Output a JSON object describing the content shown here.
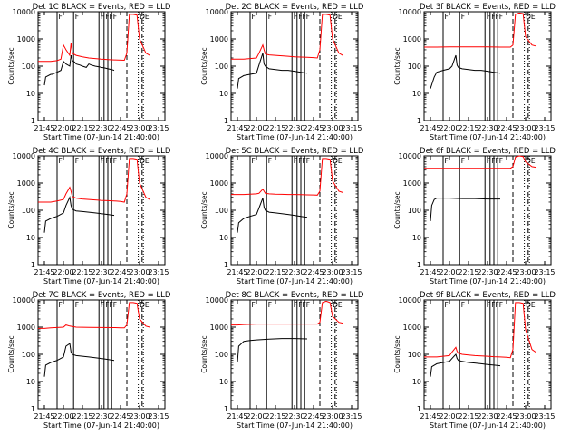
{
  "figure": {
    "colors": {
      "events": "#000000",
      "lld": "#ff0000",
      "axis": "#000000",
      "background": "#ffffff"
    },
    "ylabel": "Counts/sec",
    "xlabel": "Start Time (07-Jun-14 21:40:00)",
    "x_tick_labels": [
      "21:45",
      "22:00",
      "22:15",
      "22:30",
      "22:45",
      "23:00",
      "23:15"
    ],
    "y_tick_labels": [
      "1",
      "10",
      "100",
      "1000",
      "10000"
    ],
    "event_flags": [
      "F",
      "F",
      "F",
      "F",
      "F",
      "F",
      "DE"
    ]
  },
  "chart_data": [
    {
      "type": "line",
      "title": "Det 1C BLACK = Events, RED = LLD",
      "xlim_min": [
        0,
        100
      ],
      "ylim": [
        1,
        10000
      ],
      "yscale": "log",
      "x_ticks_min": [
        5,
        20,
        35,
        50,
        65,
        80,
        95
      ],
      "series": [
        {
          "name": "Events",
          "color": "#000000",
          "x": [
            0,
            5,
            6,
            10,
            11,
            15,
            18,
            20,
            22,
            25,
            26,
            27,
            29,
            30,
            33,
            35,
            38,
            40,
            42,
            45,
            48,
            50,
            53,
            55,
            58,
            60
          ],
          "y": [
            null,
            20,
            40,
            50,
            50,
            60,
            70,
            150,
            120,
            100,
            250,
            160,
            140,
            120,
            110,
            100,
            90,
            120,
            110,
            100,
            95,
            90,
            85,
            80,
            75,
            70
          ]
        },
        {
          "name": "LLD",
          "color": "#ff0000",
          "x": [
            0,
            5,
            10,
            15,
            18,
            20,
            22,
            25,
            26,
            27,
            30,
            35,
            40,
            45,
            50,
            55,
            60,
            68,
            70,
            72,
            75,
            78,
            80,
            85,
            88
          ],
          "y": [
            150,
            150,
            150,
            160,
            180,
            600,
            400,
            250,
            700,
            300,
            250,
            220,
            200,
            190,
            180,
            175,
            170,
            165,
            300,
            8000,
            8000,
            7500,
            1000,
            300,
            250
          ]
        }
      ],
      "vlines_solid_min": [
        15,
        28,
        48,
        52,
        55,
        58
      ],
      "vlines_dashed_min": [
        70,
        82
      ],
      "vlines_dotted_min": [
        79,
        83
      ]
    },
    {
      "type": "line",
      "title": "Det 2C BLACK = Events, RED = LLD",
      "xlim_min": [
        0,
        100
      ],
      "ylim": [
        1,
        10000
      ],
      "yscale": "log",
      "x_ticks_min": [
        5,
        20,
        35,
        50,
        65,
        80,
        95
      ],
      "series": [
        {
          "name": "Events",
          "color": "#000000",
          "x": [
            0,
            5,
            6,
            10,
            15,
            20,
            22,
            25,
            26,
            27,
            30,
            35,
            40,
            45,
            50,
            55,
            60
          ],
          "y": [
            null,
            15,
            35,
            45,
            50,
            55,
            110,
            300,
            120,
            100,
            80,
            75,
            70,
            70,
            65,
            60,
            55
          ]
        },
        {
          "name": "LLD",
          "color": "#ff0000",
          "x": [
            0,
            5,
            10,
            15,
            20,
            22,
            25,
            26,
            27,
            30,
            35,
            40,
            45,
            50,
            55,
            60,
            65,
            68,
            70,
            72,
            75,
            78,
            80,
            85,
            88
          ],
          "y": [
            180,
            180,
            180,
            190,
            200,
            300,
            600,
            400,
            280,
            260,
            250,
            240,
            230,
            220,
            215,
            210,
            205,
            200,
            400,
            8000,
            8000,
            7500,
            1000,
            300,
            250
          ]
        }
      ],
      "vlines_solid_min": [
        15,
        28,
        48,
        52,
        55,
        58
      ],
      "vlines_dashed_min": [
        70,
        82
      ],
      "vlines_dotted_min": [
        79,
        83
      ]
    },
    {
      "type": "line",
      "title": "Det 3f BLACK = Events, RED = LLD",
      "xlim_min": [
        0,
        100
      ],
      "ylim": [
        1,
        10000
      ],
      "yscale": "log",
      "x_ticks_min": [
        5,
        20,
        35,
        50,
        65,
        80,
        95
      ],
      "series": [
        {
          "name": "Events",
          "color": "#000000",
          "x": [
            0,
            5,
            8,
            10,
            15,
            20,
            22,
            25,
            26,
            27,
            30,
            35,
            40,
            45,
            50,
            55,
            60
          ],
          "y": [
            null,
            15,
            40,
            60,
            70,
            80,
            100,
            250,
            110,
            90,
            80,
            75,
            70,
            70,
            65,
            60,
            55
          ]
        },
        {
          "name": "LLD",
          "color": "#ff0000",
          "x": [
            0,
            5,
            10,
            20,
            30,
            40,
            50,
            60,
            65,
            68,
            70,
            72,
            75,
            78,
            80,
            85,
            88
          ],
          "y": [
            500,
            500,
            500,
            510,
            510,
            510,
            510,
            500,
            500,
            500,
            600,
            8000,
            9000,
            8500,
            1200,
            600,
            550
          ]
        }
      ],
      "vlines_solid_min": [
        15,
        28,
        48,
        52,
        55,
        58
      ],
      "vlines_dashed_min": [
        70,
        82
      ],
      "vlines_dotted_min": [
        79,
        83
      ]
    },
    {
      "type": "line",
      "title": "Det 4C BLACK = Events, RED = LLD",
      "xlim_min": [
        0,
        100
      ],
      "ylim": [
        1,
        10000
      ],
      "yscale": "log",
      "x_ticks_min": [
        5,
        20,
        35,
        50,
        65,
        80,
        95
      ],
      "series": [
        {
          "name": "Events",
          "color": "#000000",
          "x": [
            0,
            5,
            6,
            10,
            15,
            20,
            22,
            25,
            26,
            27,
            30,
            35,
            40,
            45,
            50,
            55,
            60
          ],
          "y": [
            null,
            15,
            40,
            50,
            60,
            80,
            150,
            300,
            150,
            110,
            95,
            90,
            85,
            80,
            75,
            70,
            65
          ]
        },
        {
          "name": "LLD",
          "color": "#ff0000",
          "x": [
            0,
            5,
            10,
            15,
            20,
            22,
            25,
            26,
            27,
            30,
            35,
            40,
            45,
            50,
            55,
            60,
            65,
            68,
            70,
            72,
            75,
            78,
            80,
            85,
            88
          ],
          "y": [
            200,
            200,
            200,
            220,
            250,
            400,
            700,
            500,
            320,
            280,
            260,
            250,
            240,
            230,
            225,
            220,
            210,
            200,
            400,
            8000,
            8000,
            7500,
            1000,
            300,
            250
          ]
        }
      ],
      "vlines_solid_min": [
        15,
        28,
        48,
        52,
        55,
        58
      ],
      "vlines_dashed_min": [
        70,
        82
      ],
      "vlines_dotted_min": [
        79,
        83
      ]
    },
    {
      "type": "line",
      "title": "Det 5C BLACK = Events, RED = LLD",
      "xlim_min": [
        0,
        100
      ],
      "ylim": [
        1,
        10000
      ],
      "yscale": "log",
      "x_ticks_min": [
        5,
        20,
        35,
        50,
        65,
        80,
        95
      ],
      "series": [
        {
          "name": "Events",
          "color": "#000000",
          "x": [
            0,
            5,
            6,
            10,
            15,
            20,
            22,
            25,
            26,
            27,
            30,
            35,
            40,
            45,
            50,
            55,
            60
          ],
          "y": [
            null,
            15,
            35,
            50,
            60,
            70,
            120,
            280,
            130,
            100,
            85,
            80,
            75,
            70,
            65,
            60,
            55
          ]
        },
        {
          "name": "LLD",
          "color": "#ff0000",
          "x": [
            0,
            5,
            10,
            15,
            20,
            22,
            25,
            26,
            27,
            30,
            35,
            40,
            45,
            50,
            55,
            60,
            65,
            68,
            70,
            72,
            75,
            78,
            80,
            85,
            88
          ],
          "y": [
            380,
            380,
            380,
            390,
            400,
            420,
            600,
            500,
            420,
            400,
            390,
            385,
            380,
            380,
            375,
            370,
            365,
            360,
            500,
            8000,
            8000,
            7500,
            1200,
            500,
            450
          ]
        }
      ],
      "vlines_solid_min": [
        15,
        28,
        48,
        52,
        55,
        58
      ],
      "vlines_dashed_min": [
        70,
        82
      ],
      "vlines_dotted_min": [
        79,
        83
      ]
    },
    {
      "type": "line",
      "title": "Det 6f BLACK = Events, RED = LLD",
      "xlim_min": [
        0,
        100
      ],
      "ylim": [
        1,
        10000
      ],
      "yscale": "log",
      "x_ticks_min": [
        5,
        20,
        35,
        50,
        65,
        80,
        95
      ],
      "series": [
        {
          "name": "Events",
          "color": "#000000",
          "x": [
            0,
            5,
            6,
            8,
            10,
            20,
            30,
            40,
            50,
            60
          ],
          "y": [
            null,
            40,
            150,
            250,
            280,
            280,
            270,
            270,
            260,
            260
          ]
        },
        {
          "name": "LLD",
          "color": "#ff0000",
          "x": [
            0,
            5,
            10,
            20,
            30,
            40,
            50,
            60,
            65,
            68,
            70,
            72,
            75,
            78,
            80,
            85,
            88
          ],
          "y": [
            3500,
            3500,
            3500,
            3500,
            3500,
            3500,
            3500,
            3500,
            3500,
            3500,
            4000,
            9000,
            10000,
            9500,
            6000,
            4000,
            3800
          ]
        }
      ],
      "vlines_solid_min": [
        15,
        28,
        48,
        52,
        55,
        58
      ],
      "vlines_dashed_min": [
        70,
        82
      ],
      "vlines_dotted_min": [
        79,
        83
      ]
    },
    {
      "type": "line",
      "title": "Det 7C BLACK = Events, RED = LLD",
      "xlim_min": [
        0,
        100
      ],
      "ylim": [
        1,
        10000
      ],
      "yscale": "log",
      "x_ticks_min": [
        5,
        20,
        35,
        50,
        65,
        80,
        95
      ],
      "series": [
        {
          "name": "Events",
          "color": "#000000",
          "x": [
            0,
            5,
            6,
            10,
            15,
            20,
            22,
            25,
            26,
            27,
            30,
            35,
            40,
            45,
            50,
            55,
            60
          ],
          "y": [
            null,
            15,
            40,
            50,
            60,
            80,
            200,
            250,
            120,
            100,
            90,
            85,
            80,
            75,
            70,
            65,
            60
          ]
        },
        {
          "name": "LLD",
          "color": "#ff0000",
          "x": [
            0,
            5,
            10,
            20,
            22,
            25,
            30,
            40,
            50,
            60,
            65,
            68,
            70,
            72,
            75,
            78,
            80,
            85,
            88
          ],
          "y": [
            900,
            900,
            950,
            1000,
            1200,
            1100,
            1000,
            980,
            970,
            960,
            950,
            940,
            1200,
            8000,
            8000,
            7500,
            2000,
            1100,
            1000
          ]
        }
      ],
      "vlines_solid_min": [
        15,
        28,
        48,
        52,
        55,
        58
      ],
      "vlines_dashed_min": [
        70,
        82
      ],
      "vlines_dotted_min": [
        79,
        83
      ]
    },
    {
      "type": "line",
      "title": "Det 8C BLACK = Events, RED = LLD",
      "xlim_min": [
        0,
        100
      ],
      "ylim": [
        1,
        10000
      ],
      "yscale": "log",
      "x_ticks_min": [
        5,
        20,
        35,
        50,
        65,
        80,
        95
      ],
      "series": [
        {
          "name": "Events",
          "color": "#000000",
          "x": [
            0,
            5,
            6,
            10,
            15,
            20,
            30,
            40,
            50,
            60
          ],
          "y": [
            null,
            50,
            200,
            300,
            320,
            340,
            360,
            380,
            380,
            370
          ]
        },
        {
          "name": "LLD",
          "color": "#ff0000",
          "x": [
            0,
            5,
            10,
            20,
            30,
            40,
            50,
            60,
            65,
            68,
            70,
            72,
            75,
            78,
            80,
            85,
            88
          ],
          "y": [
            1200,
            1200,
            1250,
            1300,
            1300,
            1300,
            1300,
            1300,
            1300,
            1300,
            1500,
            8000,
            9000,
            8000,
            2500,
            1500,
            1400
          ]
        }
      ],
      "vlines_solid_min": [
        15,
        28,
        48,
        52,
        55,
        58
      ],
      "vlines_dashed_min": [
        70,
        82
      ],
      "vlines_dotted_min": [
        79,
        83
      ]
    },
    {
      "type": "line",
      "title": "Det 9f BLACK = Events, RED = LLD",
      "xlim_min": [
        0,
        100
      ],
      "ylim": [
        1,
        10000
      ],
      "yscale": "log",
      "x_ticks_min": [
        5,
        20,
        35,
        50,
        65,
        80,
        95
      ],
      "series": [
        {
          "name": "Events",
          "color": "#000000",
          "x": [
            0,
            5,
            6,
            10,
            15,
            20,
            22,
            25,
            26,
            27,
            30,
            35,
            40,
            45,
            50,
            55,
            60
          ],
          "y": [
            null,
            15,
            35,
            45,
            50,
            55,
            70,
            100,
            70,
            60,
            55,
            50,
            48,
            45,
            42,
            40,
            38
          ]
        },
        {
          "name": "LLD",
          "color": "#ff0000",
          "x": [
            0,
            5,
            10,
            15,
            20,
            22,
            25,
            26,
            27,
            30,
            35,
            40,
            45,
            50,
            55,
            60,
            65,
            68,
            70,
            72,
            75,
            78,
            80,
            85,
            88
          ],
          "y": [
            80,
            80,
            80,
            85,
            90,
            120,
            180,
            130,
            110,
            100,
            95,
            90,
            88,
            85,
            82,
            80,
            78,
            75,
            150,
            8000,
            8000,
            7500,
            800,
            150,
            120
          ]
        }
      ],
      "vlines_solid_min": [
        15,
        28,
        48,
        52,
        55,
        58
      ],
      "vlines_dashed_min": [
        70,
        82
      ],
      "vlines_dotted_min": [
        79,
        83
      ]
    }
  ]
}
